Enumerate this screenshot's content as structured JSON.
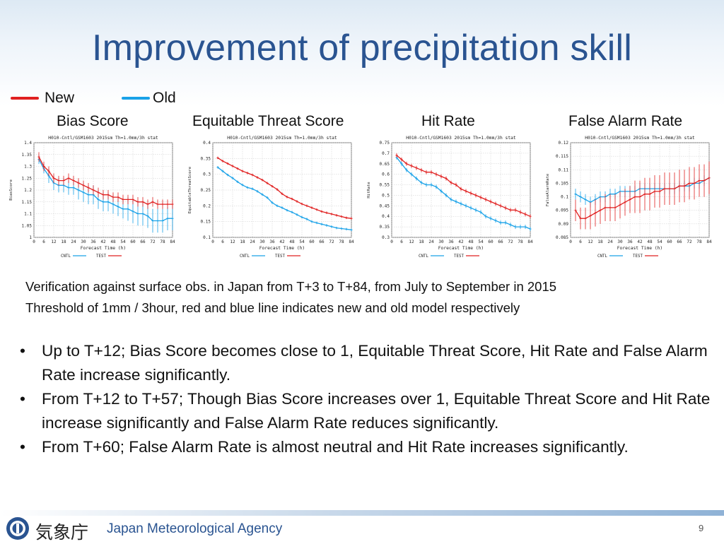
{
  "title": "Improvement of precipitation skill",
  "legend": {
    "new_label": "New",
    "old_label": "Old",
    "new_color": "#e02020",
    "old_color": "#1aa2e8"
  },
  "chart_titles": [
    "Bias Score",
    "Equitable Threat Score",
    "Hit Rate",
    "False Alarm Rate"
  ],
  "chart_data": [
    {
      "type": "line",
      "header": "H010-Cntl/GSM1603 2015sm Th=1.0mm/3h stat",
      "xlabel": "Forecast Time (h)",
      "ylabel": "BiasScore",
      "x": [
        3,
        6,
        9,
        12,
        15,
        18,
        21,
        24,
        27,
        30,
        33,
        36,
        39,
        42,
        45,
        48,
        51,
        54,
        57,
        60,
        63,
        66,
        69,
        72,
        75,
        78,
        81,
        84
      ],
      "xticks": [
        0,
        6,
        12,
        18,
        24,
        30,
        36,
        42,
        48,
        54,
        60,
        66,
        72,
        78,
        84
      ],
      "xlim": [
        0,
        84
      ],
      "ylim": [
        1,
        1.4
      ],
      "yticks": [
        1,
        1.05,
        1.1,
        1.15,
        1.2,
        1.25,
        1.3,
        1.35,
        1.4
      ],
      "ytick_labels": [
        "1",
        "1.05",
        "1.1",
        "1.15",
        "1.2",
        "1.25",
        "1.3",
        "1.35",
        "1.4"
      ],
      "series": [
        {
          "name": "CNTL",
          "values": [
            1.33,
            1.29,
            1.26,
            1.23,
            1.22,
            1.22,
            1.21,
            1.21,
            1.2,
            1.19,
            1.18,
            1.18,
            1.16,
            1.15,
            1.15,
            1.14,
            1.13,
            1.12,
            1.12,
            1.11,
            1.1,
            1.1,
            1.09,
            1.07,
            1.07,
            1.07,
            1.08,
            1.08
          ],
          "err": [
            0.02,
            0.02,
            0.03,
            0.03,
            0.03,
            0.03,
            0.03,
            0.03,
            0.04,
            0.04,
            0.04,
            0.04,
            0.04,
            0.04,
            0.04,
            0.04,
            0.04,
            0.04,
            0.05,
            0.05,
            0.05,
            0.05,
            0.05,
            0.05,
            0.05,
            0.05,
            0.05,
            0.05
          ]
        },
        {
          "name": "TEST",
          "values": [
            1.34,
            1.3,
            1.28,
            1.25,
            1.24,
            1.24,
            1.25,
            1.24,
            1.23,
            1.22,
            1.21,
            1.2,
            1.19,
            1.18,
            1.18,
            1.17,
            1.17,
            1.16,
            1.16,
            1.16,
            1.15,
            1.15,
            1.14,
            1.15,
            1.14,
            1.14,
            1.14,
            1.14
          ],
          "err": [
            0.02,
            0.02,
            0.02,
            0.02,
            0.02,
            0.02,
            0.02,
            0.02,
            0.02,
            0.02,
            0.02,
            0.02,
            0.02,
            0.02,
            0.02,
            0.02,
            0.02,
            0.02,
            0.02,
            0.02,
            0.02,
            0.02,
            0.02,
            0.02,
            0.02,
            0.02,
            0.02,
            0.02
          ]
        }
      ]
    },
    {
      "type": "line",
      "header": "H010-Cntl/GSM1603 2015sm Th=1.0mm/3h stat",
      "xlabel": "Forecast Time (h)",
      "ylabel": "EquitableThreatScore",
      "x": [
        3,
        6,
        9,
        12,
        15,
        18,
        21,
        24,
        27,
        30,
        33,
        36,
        39,
        42,
        45,
        48,
        51,
        54,
        57,
        60,
        63,
        66,
        69,
        72,
        75,
        78,
        81,
        84
      ],
      "xticks": [
        0,
        6,
        12,
        18,
        24,
        30,
        36,
        42,
        48,
        54,
        60,
        66,
        72,
        78,
        84
      ],
      "xlim": [
        0,
        84
      ],
      "ylim": [
        0.1,
        0.4
      ],
      "yticks": [
        0.1,
        0.15,
        0.2,
        0.25,
        0.3,
        0.35,
        0.4
      ],
      "ytick_labels": [
        "0.1",
        "0.15",
        "0.2",
        "0.25",
        "0.3",
        "0.35",
        "0.4"
      ],
      "series": [
        {
          "name": "CNTL",
          "values": [
            0.322,
            0.31,
            0.298,
            0.288,
            0.276,
            0.266,
            0.258,
            0.254,
            0.246,
            0.236,
            0.226,
            0.21,
            0.2,
            0.194,
            0.186,
            0.18,
            0.172,
            0.164,
            0.158,
            0.15,
            0.146,
            0.142,
            0.138,
            0.134,
            0.13,
            0.128,
            0.126,
            0.124
          ],
          "err": [
            0.004,
            0.004,
            0.004,
            0.004,
            0.004,
            0.004,
            0.004,
            0.004,
            0.004,
            0.004,
            0.004,
            0.004,
            0.004,
            0.004,
            0.004,
            0.004,
            0.004,
            0.004,
            0.004,
            0.004,
            0.004,
            0.004,
            0.004,
            0.004,
            0.004,
            0.004,
            0.004,
            0.004
          ]
        },
        {
          "name": "TEST",
          "values": [
            0.352,
            0.342,
            0.334,
            0.326,
            0.318,
            0.31,
            0.304,
            0.298,
            0.29,
            0.282,
            0.272,
            0.262,
            0.252,
            0.238,
            0.228,
            0.222,
            0.214,
            0.206,
            0.2,
            0.194,
            0.188,
            0.182,
            0.178,
            0.174,
            0.17,
            0.166,
            0.162,
            0.16
          ],
          "err": [
            0.004,
            0.004,
            0.004,
            0.004,
            0.004,
            0.004,
            0.004,
            0.004,
            0.004,
            0.004,
            0.004,
            0.004,
            0.004,
            0.004,
            0.004,
            0.004,
            0.004,
            0.004,
            0.004,
            0.004,
            0.004,
            0.004,
            0.004,
            0.004,
            0.004,
            0.004,
            0.004,
            0.004
          ]
        }
      ]
    },
    {
      "type": "line",
      "header": "H010-Cntl/GSM1603 2015sm Th=1.0mm/3h stat",
      "xlabel": "Forecast Time (h)",
      "ylabel": "HitRate",
      "x": [
        3,
        6,
        9,
        12,
        15,
        18,
        21,
        24,
        27,
        30,
        33,
        36,
        39,
        42,
        45,
        48,
        51,
        54,
        57,
        60,
        63,
        66,
        69,
        72,
        75,
        78,
        81,
        84
      ],
      "xticks": [
        0,
        6,
        12,
        18,
        24,
        30,
        36,
        42,
        48,
        54,
        60,
        66,
        72,
        78,
        84
      ],
      "xlim": [
        0,
        84
      ],
      "ylim": [
        0.3,
        0.75
      ],
      "yticks": [
        0.3,
        0.35,
        0.4,
        0.45,
        0.5,
        0.55,
        0.6,
        0.65,
        0.7,
        0.75
      ],
      "ytick_labels": [
        "0.3",
        "0.35",
        "0.4",
        "0.45",
        "0.5",
        "0.55",
        "0.6",
        "0.65",
        "0.7",
        "0.75"
      ],
      "series": [
        {
          "name": "CNTL",
          "values": [
            0.68,
            0.65,
            0.62,
            0.6,
            0.58,
            0.56,
            0.55,
            0.55,
            0.54,
            0.52,
            0.5,
            0.48,
            0.47,
            0.46,
            0.45,
            0.44,
            0.43,
            0.42,
            0.4,
            0.39,
            0.38,
            0.37,
            0.37,
            0.36,
            0.35,
            0.35,
            0.35,
            0.34
          ],
          "err": [
            0.01,
            0.01,
            0.01,
            0.01,
            0.01,
            0.01,
            0.01,
            0.01,
            0.01,
            0.01,
            0.01,
            0.01,
            0.01,
            0.01,
            0.01,
            0.01,
            0.01,
            0.01,
            0.01,
            0.01,
            0.01,
            0.01,
            0.01,
            0.01,
            0.01,
            0.01,
            0.01,
            0.01
          ]
        },
        {
          "name": "TEST",
          "values": [
            0.69,
            0.67,
            0.65,
            0.64,
            0.63,
            0.62,
            0.61,
            0.61,
            0.6,
            0.59,
            0.58,
            0.56,
            0.55,
            0.53,
            0.52,
            0.51,
            0.5,
            0.49,
            0.48,
            0.47,
            0.46,
            0.45,
            0.44,
            0.43,
            0.43,
            0.42,
            0.41,
            0.4
          ],
          "err": [
            0.01,
            0.01,
            0.01,
            0.01,
            0.01,
            0.01,
            0.01,
            0.01,
            0.01,
            0.01,
            0.01,
            0.01,
            0.01,
            0.01,
            0.01,
            0.01,
            0.01,
            0.01,
            0.01,
            0.01,
            0.01,
            0.01,
            0.01,
            0.01,
            0.01,
            0.01,
            0.01,
            0.01
          ]
        }
      ]
    },
    {
      "type": "line",
      "header": "H010-Cntl/GSM1603 2015sm Th=1.0mm/3h stat",
      "xlabel": "Forecast Time (h)",
      "ylabel": "FalseAlarmRate",
      "x": [
        3,
        6,
        9,
        12,
        15,
        18,
        21,
        24,
        27,
        30,
        33,
        36,
        39,
        42,
        45,
        48,
        51,
        54,
        57,
        60,
        63,
        66,
        69,
        72,
        75,
        78,
        81,
        84
      ],
      "xticks": [
        0,
        6,
        12,
        18,
        24,
        30,
        36,
        42,
        48,
        54,
        60,
        66,
        72,
        78,
        84
      ],
      "xlim": [
        0,
        84
      ],
      "ylim": [
        0.085,
        0.12
      ],
      "yticks": [
        0.085,
        0.09,
        0.095,
        0.1,
        0.105,
        0.11,
        0.115,
        0.12
      ],
      "ytick_labels": [
        "0.085",
        "0.09",
        "0.095",
        "0.1",
        "0.105",
        "0.11",
        "0.115",
        "0.12"
      ],
      "series": [
        {
          "name": "CNTL",
          "values": [
            0.101,
            0.1,
            0.099,
            0.098,
            0.099,
            0.1,
            0.1,
            0.101,
            0.101,
            0.102,
            0.102,
            0.102,
            0.102,
            0.103,
            0.103,
            0.103,
            0.103,
            0.103,
            0.103,
            0.103,
            0.103,
            0.104,
            0.104,
            0.104,
            0.105,
            0.105,
            0.106,
            0.107
          ],
          "err": [
            0.002,
            0.002,
            0.002,
            0.002,
            0.002,
            0.002,
            0.002,
            0.002,
            0.002,
            0.002,
            0.002,
            0.002,
            0.002,
            0.002,
            0.002,
            0.002,
            0.002,
            0.002,
            0.002,
            0.002,
            0.002,
            0.002,
            0.002,
            0.002,
            0.002,
            0.002,
            0.002,
            0.002
          ]
        },
        {
          "name": "TEST",
          "values": [
            0.095,
            0.092,
            0.092,
            0.093,
            0.094,
            0.095,
            0.096,
            0.096,
            0.096,
            0.097,
            0.098,
            0.099,
            0.1,
            0.1,
            0.101,
            0.101,
            0.102,
            0.102,
            0.103,
            0.103,
            0.103,
            0.104,
            0.104,
            0.105,
            0.105,
            0.106,
            0.106,
            0.107
          ],
          "err": [
            0.004,
            0.004,
            0.004,
            0.005,
            0.005,
            0.005,
            0.005,
            0.005,
            0.005,
            0.005,
            0.005,
            0.005,
            0.006,
            0.006,
            0.006,
            0.006,
            0.006,
            0.006,
            0.006,
            0.006,
            0.006,
            0.006,
            0.006,
            0.006,
            0.006,
            0.006,
            0.006,
            0.006
          ]
        }
      ]
    }
  ],
  "verification": [
    "Verification against surface obs. in Japan from T+3 to T+84, from July to September in 2015",
    "Threshold of 1mm / 3hour, red and blue line indicates new and old model respectively"
  ],
  "bullets": [
    "Up to T+12; Bias Score becomes close to 1, Equitable Threat Score, Hit Rate and False Alarm Rate increase significantly.",
    "From T+12 to T+57; Though Bias Score increases over 1, Equitable Threat Score and Hit Rate increase significantly and False Alarm Rate reduces significantly.",
    "From T+60; False Alarm Rate is almost neutral and Hit Rate increases significantly."
  ],
  "bullet_symbol": "•",
  "footer": {
    "kanji": "気象庁",
    "agency": "Japan Meteorological Agency",
    "page_number": "9"
  }
}
